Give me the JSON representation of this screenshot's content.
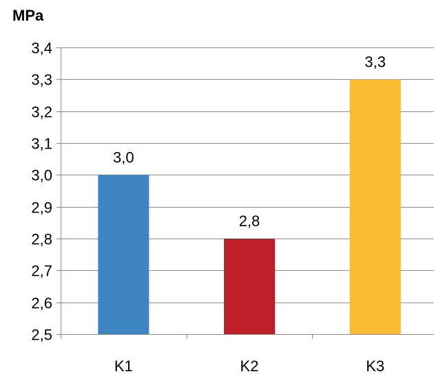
{
  "chart_data": {
    "type": "bar",
    "unit_label": "MPa",
    "categories": [
      "K1",
      "K2",
      "K3"
    ],
    "values": [
      3.0,
      2.8,
      3.3
    ],
    "data_labels": [
      "3,0",
      "2,8",
      "3,3"
    ],
    "colors": [
      "#3e85c3",
      "#bf2028",
      "#fbbb30"
    ],
    "ylim": [
      2.5,
      3.4
    ],
    "yticks": [
      2.5,
      2.6,
      2.7,
      2.8,
      2.9,
      3.0,
      3.1,
      3.2,
      3.3,
      3.4
    ],
    "ytick_labels": [
      "2,5",
      "2,6",
      "2,7",
      "2,8",
      "2,9",
      "3,0",
      "3,1",
      "3,2",
      "3,3",
      "3,4"
    ],
    "grid": true,
    "legend": "none"
  }
}
